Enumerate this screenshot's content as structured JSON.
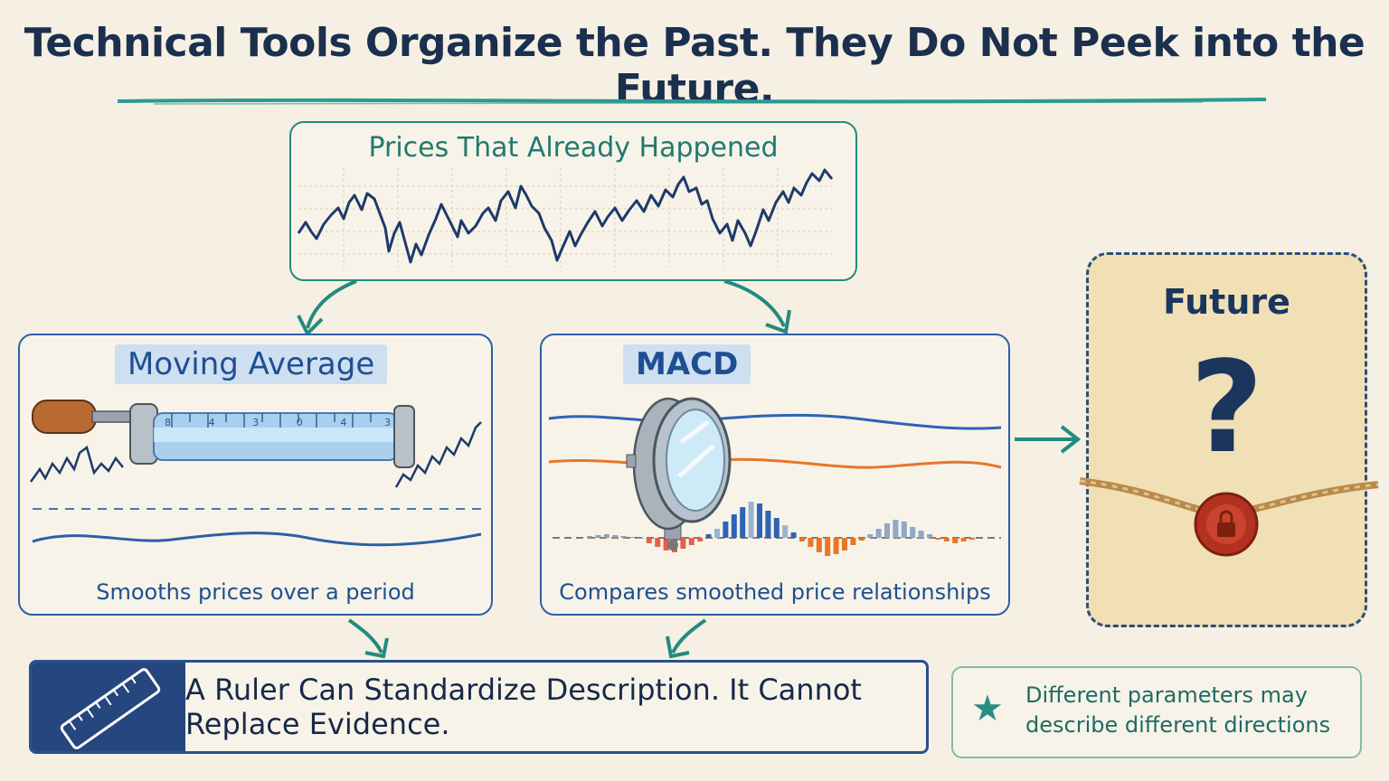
{
  "title": "Technical Tools Organize the Past. They Do Not Peek into the Future.",
  "past": {
    "label": "Prices That Already Happened"
  },
  "moving_average": {
    "tag": "Moving Average",
    "caption": "Smooths prices over a period"
  },
  "macd": {
    "tag": "MACD",
    "caption": "Compares smoothed price relationships"
  },
  "future": {
    "label": "Future",
    "symbol": "?"
  },
  "ruler": {
    "ticks": "8 4 3 0 4 3",
    "text": "A Ruler Can Standardize Description. It Cannot Replace Evidence."
  },
  "note": {
    "line1": "Different parameters may",
    "line2": "describe different directions"
  },
  "colors": {
    "teal": "#238a80",
    "navy": "#1b2f4e",
    "blue": "#2d5fa8",
    "orange": "#e8762a",
    "seal_red": "#b3321f",
    "parchment": "#f1dfb6"
  },
  "icons": [
    "rolling-ruler-icon",
    "magnifying-glass-icon",
    "wax-seal-lock-icon",
    "ruler-icon",
    "star-icon"
  ]
}
